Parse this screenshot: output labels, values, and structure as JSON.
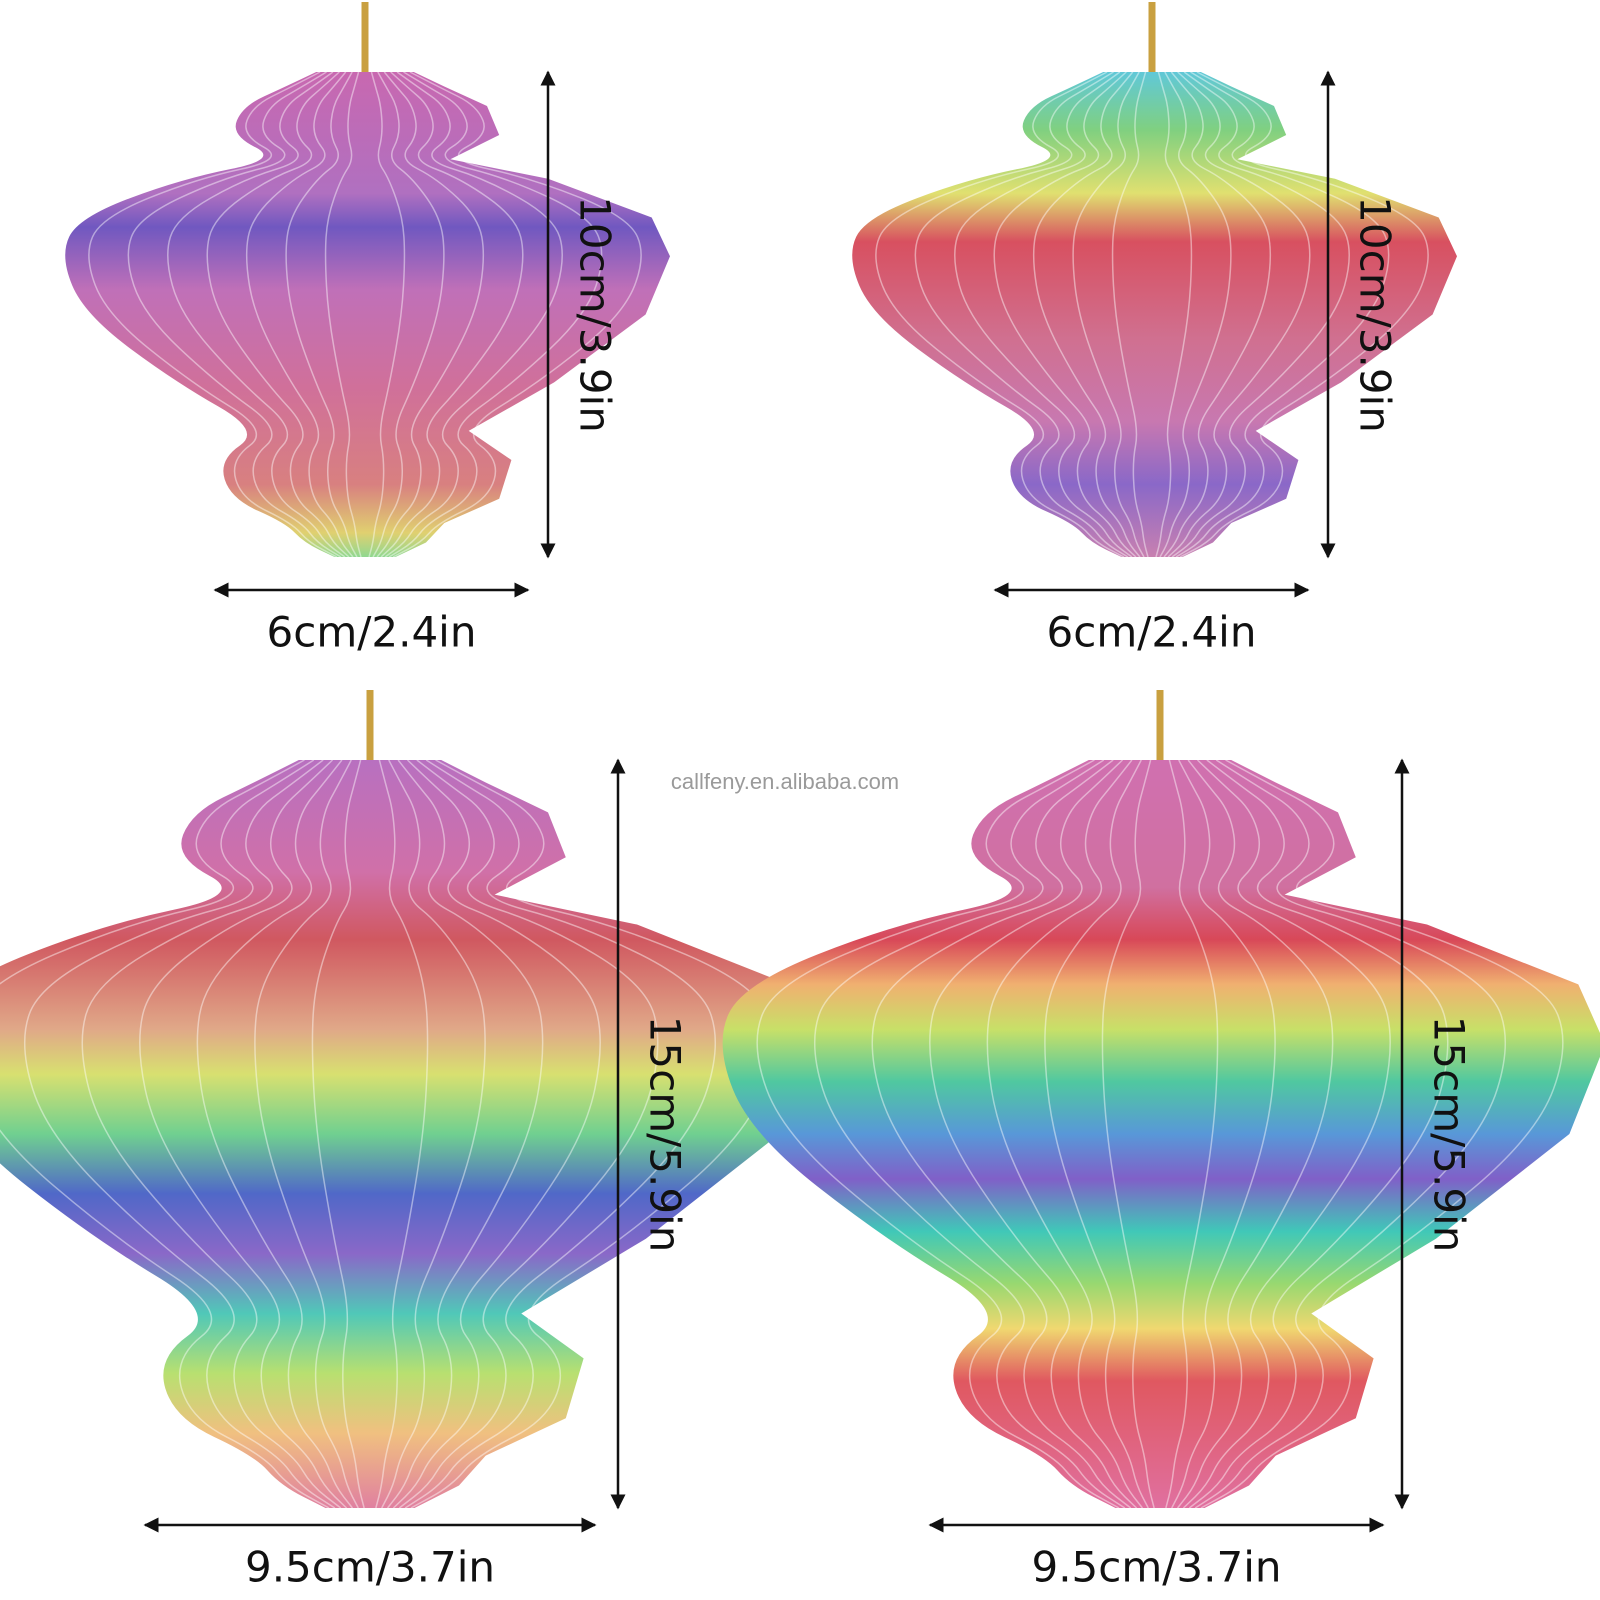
{
  "items": [
    {
      "height_label": "10cm/3.9in",
      "width_label": "6cm/2.4in"
    },
    {
      "height_label": "10cm/3.9in",
      "width_label": "6cm/2.4in"
    },
    {
      "height_label": "15cm/5.9in",
      "width_label": "9.5cm/3.7in"
    },
    {
      "height_label": "15cm/5.9in",
      "width_label": "9.5cm/3.7in"
    }
  ],
  "watermark": "callfeny.en.alibaba.com"
}
